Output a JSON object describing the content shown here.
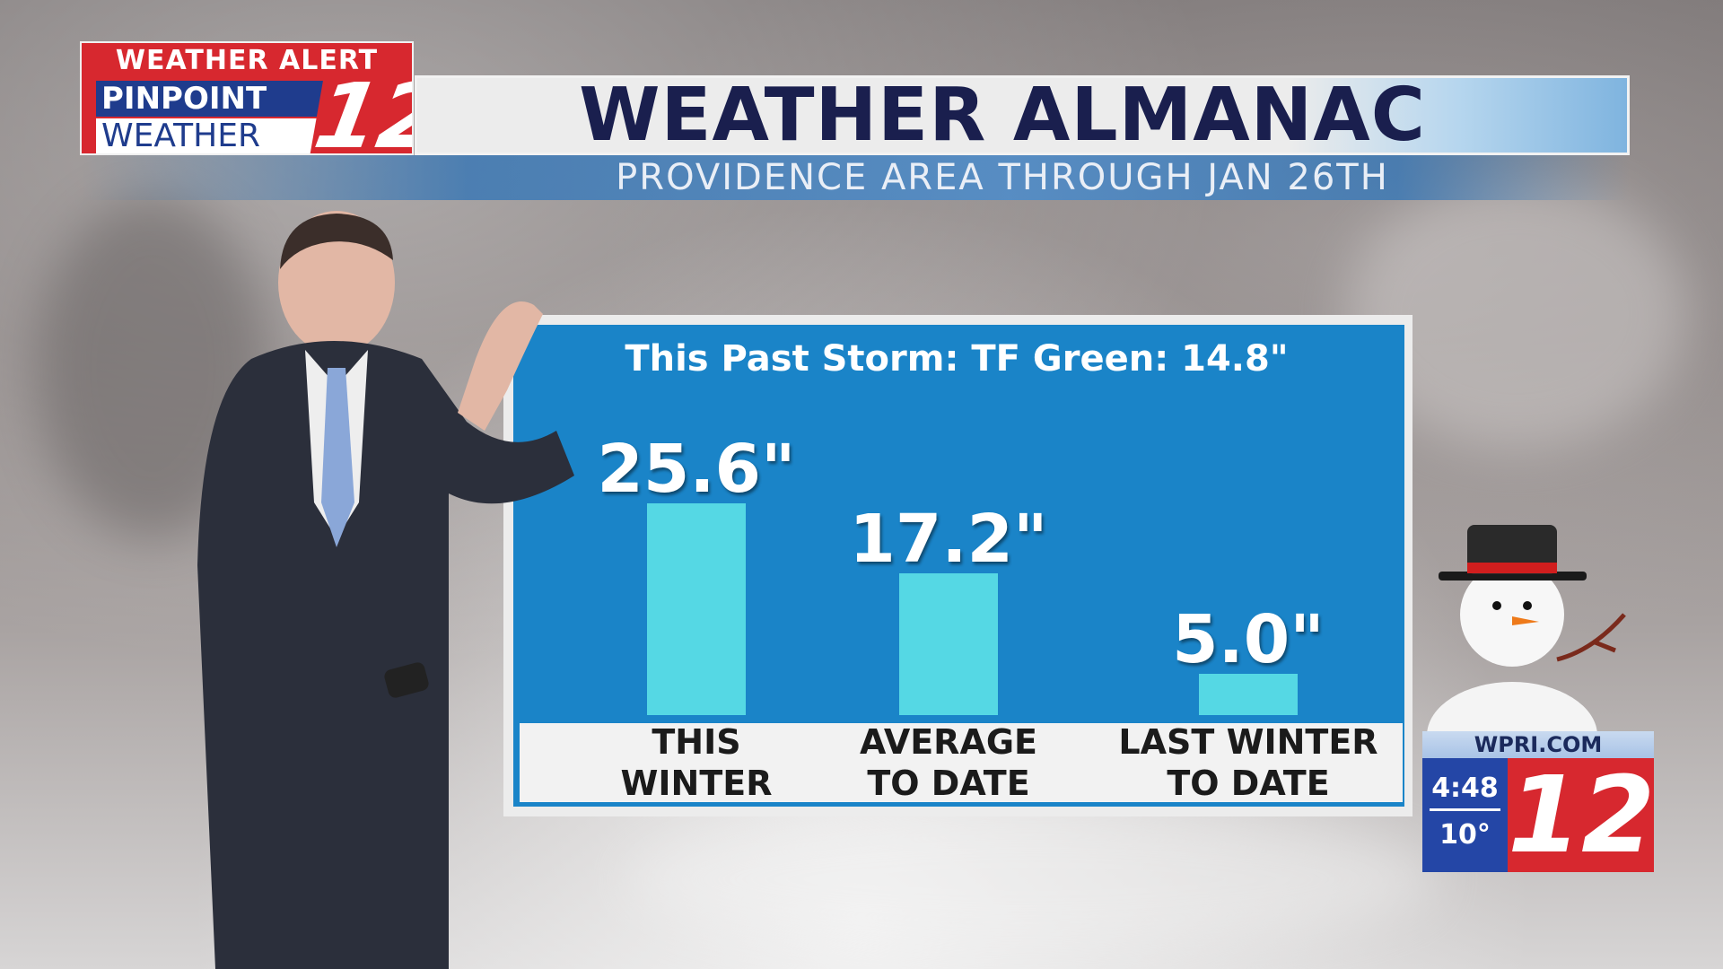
{
  "logo": {
    "alert_label": "WEATHER ALERT",
    "pinpoint_label": "PINPOINT",
    "weather_label": "WEATHER",
    "channel_number": "12"
  },
  "header": {
    "title": "WEATHER ALMANAC",
    "subtitle": "PROVIDENCE AREA THROUGH JAN 26TH"
  },
  "storm_note": "This Past Storm:  TF Green:  14.8\"",
  "chart_data": {
    "type": "bar",
    "categories": [
      "THIS WINTER",
      "AVERAGE TO DATE",
      "LAST WINTER TO DATE"
    ],
    "category_lines": [
      [
        "THIS",
        "WINTER"
      ],
      [
        "AVERAGE",
        "TO DATE"
      ],
      [
        "LAST WINTER",
        "TO DATE"
      ]
    ],
    "values": [
      25.6,
      17.2,
      5.0
    ],
    "data_labels": [
      "25.6\"",
      "17.2\"",
      "5.0\""
    ],
    "units": "inches",
    "grid": false,
    "legend": "none"
  },
  "bug": {
    "site": "WPRI.COM",
    "time": "4:48",
    "temperature": "10°",
    "channel_number": "12"
  },
  "colors": {
    "panel_blue": "#1a84c8",
    "bar_cyan": "#55d8e4",
    "title_navy": "#1a1f4e",
    "brand_red": "#d7282f",
    "brand_blue": "#2446a6"
  }
}
